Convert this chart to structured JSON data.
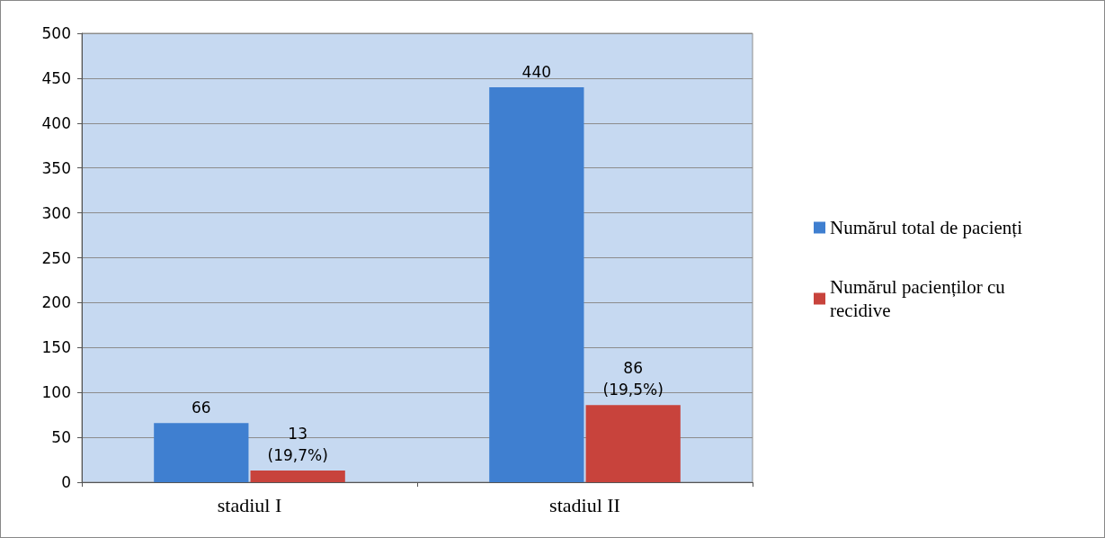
{
  "chart_data": {
    "type": "bar",
    "categories": [
      "stadiul I",
      "stadiul II"
    ],
    "series": [
      {
        "name": "Numărul total de pacienți",
        "color": "#3f7fd0",
        "values": [
          66,
          440
        ],
        "value_labels": [
          "66",
          "440"
        ]
      },
      {
        "name": "Numărul pacienților cu recidive",
        "color": "#c8433c",
        "values": [
          13,
          86
        ],
        "value_labels": [
          "13\n(19,7%)",
          "86\n(19,5%)"
        ]
      }
    ],
    "ylim": [
      0,
      500
    ],
    "yticks": [
      0,
      50,
      100,
      150,
      200,
      250,
      300,
      350,
      400,
      450,
      500
    ],
    "grid": "y",
    "legend": "right"
  }
}
